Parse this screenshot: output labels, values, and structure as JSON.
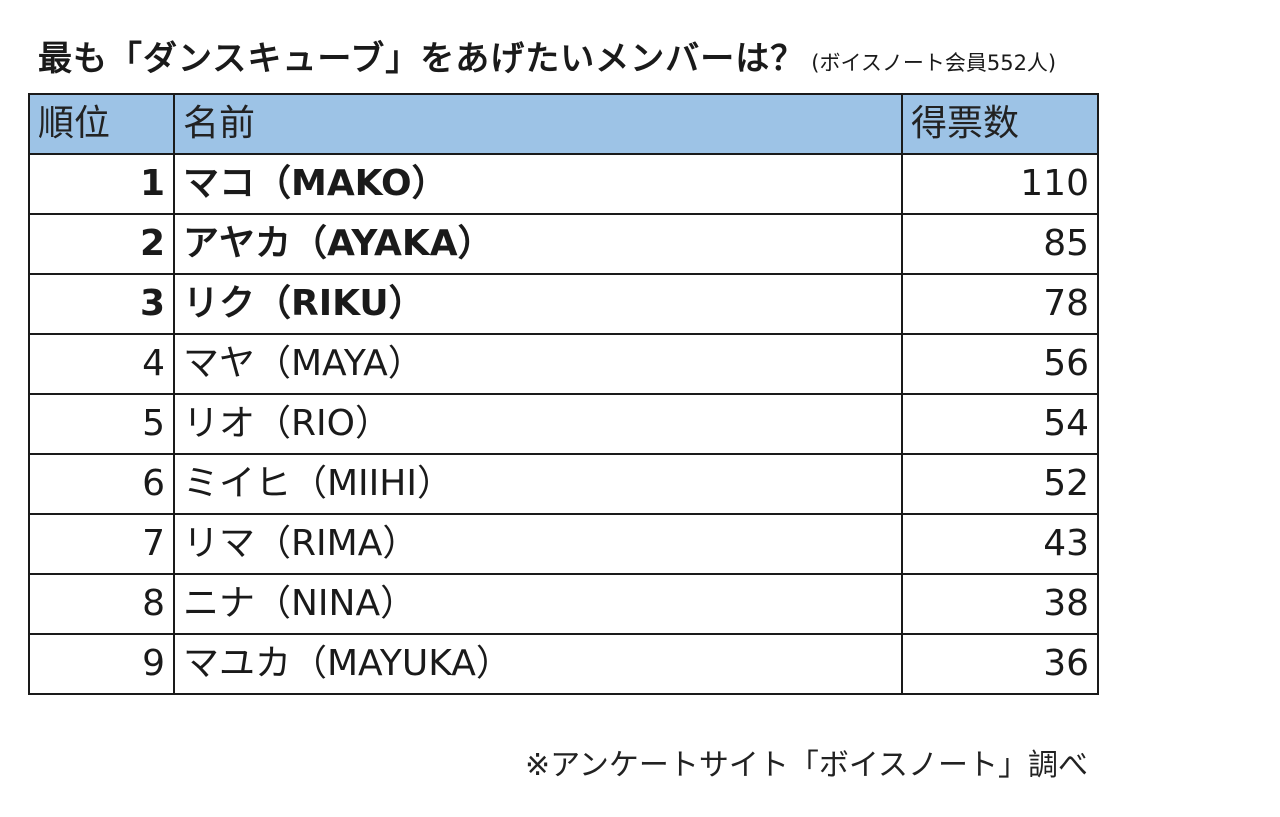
{
  "title": {
    "main": "最も「ダンスキューブ」をあげたいメンバーは？",
    "sub": "(ボイスノート会員552人)"
  },
  "table": {
    "headers": {
      "rank": "順位",
      "name": "名前",
      "votes": "得票数"
    },
    "rows": [
      {
        "rank": "1",
        "name": "マコ（MAKO）",
        "votes": "110"
      },
      {
        "rank": "2",
        "name": "アヤカ（AYAKA）",
        "votes": "85"
      },
      {
        "rank": "3",
        "name": "リク（RIKU）",
        "votes": "78"
      },
      {
        "rank": "4",
        "name": "マヤ（MAYA）",
        "votes": "56"
      },
      {
        "rank": "5",
        "name": "リオ（RIO）",
        "votes": "54"
      },
      {
        "rank": "6",
        "name": "ミイヒ（MIIHI）",
        "votes": "52"
      },
      {
        "rank": "7",
        "name": "リマ（RIMA）",
        "votes": "43"
      },
      {
        "rank": "8",
        "name": "ニナ（NINA）",
        "votes": "38"
      },
      {
        "rank": "9",
        "name": "マユカ（MAYUKA）",
        "votes": "36"
      }
    ]
  },
  "source_note": "※アンケートサイト「ボイスノート」調べ",
  "colors": {
    "header_background": "#9dc3e6",
    "border": "#1a1a1a"
  }
}
